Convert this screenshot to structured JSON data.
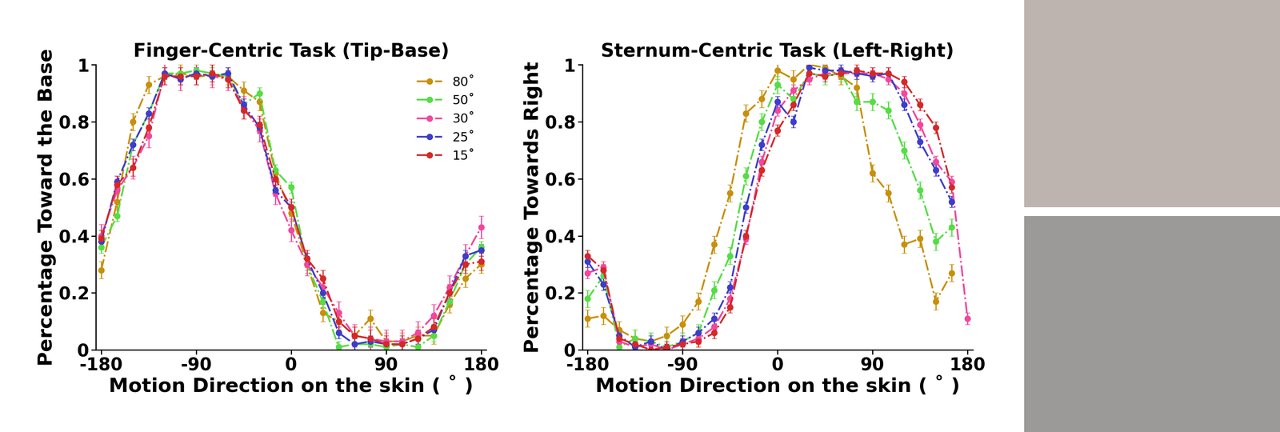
{
  "chart_data": [
    {
      "type": "line",
      "title": "Finger-Centric Task (Tip-Base)",
      "x_label": "Motion Direction on the skin ( ˚ )",
      "y_label": "Percentage Toward the Base",
      "x": [
        -180,
        -165,
        -150,
        -135,
        -120,
        -105,
        -90,
        -75,
        -60,
        -45,
        -30,
        -15,
        0,
        15,
        30,
        45,
        60,
        75,
        90,
        105,
        120,
        135,
        150,
        165,
        180
      ],
      "xlim": [
        -185,
        185
      ],
      "xticks": [
        -180,
        -90,
        0,
        90,
        180
      ],
      "ylim": [
        0,
        1
      ],
      "yticks": [
        0,
        0.2,
        0.4,
        0.6,
        0.8,
        1
      ],
      "marker": "o",
      "line_style": "dashdot",
      "legend": "upper right",
      "series": [
        {
          "name": "80˚",
          "color": "#c8900a",
          "error": 0.03,
          "values": [
            0.28,
            0.52,
            0.8,
            0.93,
            0.96,
            0.97,
            0.96,
            0.96,
            0.96,
            0.91,
            0.87,
            0.62,
            0.48,
            0.3,
            0.13,
            0.1,
            0.05,
            0.11,
            0.03,
            0.03,
            0.05,
            0.05,
            0.16,
            0.25,
            0.3
          ]
        },
        {
          "name": "50˚",
          "color": "#55dd44",
          "error": 0.02,
          "values": [
            0.36,
            0.47,
            0.72,
            0.83,
            0.97,
            0.97,
            0.98,
            0.97,
            0.96,
            0.86,
            0.9,
            0.63,
            0.57,
            0.3,
            0.17,
            0.01,
            0.02,
            0.02,
            0.01,
            0.02,
            0.01,
            0.05,
            0.17,
            0.3,
            0.36
          ]
        },
        {
          "name": "30˚",
          "color": "#f2479c",
          "error": 0.04,
          "values": [
            0.4,
            0.56,
            0.64,
            0.75,
            0.97,
            0.95,
            0.97,
            0.96,
            0.95,
            0.85,
            0.77,
            0.55,
            0.42,
            0.3,
            0.22,
            0.13,
            0.05,
            0.04,
            0.03,
            0.03,
            0.06,
            0.12,
            0.22,
            0.33,
            0.43
          ]
        },
        {
          "name": "25˚",
          "color": "#3d3dcc",
          "error": 0.02,
          "values": [
            0.38,
            0.59,
            0.72,
            0.83,
            0.97,
            0.95,
            0.97,
            0.96,
            0.97,
            0.86,
            0.78,
            0.56,
            0.5,
            0.32,
            0.2,
            0.06,
            0.02,
            0.03,
            0.02,
            0.02,
            0.04,
            0.07,
            0.2,
            0.33,
            0.35
          ]
        },
        {
          "name": "15˚",
          "color": "#d62828",
          "error": 0.03,
          "values": [
            0.39,
            0.58,
            0.64,
            0.78,
            0.96,
            0.96,
            0.96,
            0.97,
            0.95,
            0.84,
            0.79,
            0.6,
            0.5,
            0.32,
            0.25,
            0.1,
            0.05,
            0.04,
            0.02,
            0.02,
            0.04,
            0.08,
            0.2,
            0.3,
            0.31
          ]
        }
      ]
    },
    {
      "type": "line",
      "title": "Sternum-Centric Task (Left-Right)",
      "x_label": "Motion Direction on the skin ( ˚ )",
      "y_label": "Percentage Towards Right",
      "x": [
        -180,
        -165,
        -150,
        -135,
        -120,
        -105,
        -90,
        -75,
        -60,
        -45,
        -30,
        -15,
        0,
        15,
        30,
        45,
        60,
        75,
        90,
        105,
        120,
        135,
        150,
        165,
        180
      ],
      "xlim": [
        -185,
        185
      ],
      "xticks": [
        -180,
        -90,
        0,
        90,
        180
      ],
      "ylim": [
        0,
        1
      ],
      "yticks": [
        0,
        0.2,
        0.4,
        0.6,
        0.8,
        1
      ],
      "marker": "o",
      "line_style": "dashdot",
      "series": [
        {
          "name": "80˚",
          "color": "#c8900a",
          "error": 0.03,
          "values": [
            0.11,
            0.12,
            0.07,
            0.04,
            0.03,
            0.05,
            0.09,
            0.17,
            0.37,
            0.55,
            0.83,
            0.88,
            0.98,
            0.95,
            1.0,
            0.99,
            0.96,
            0.92,
            0.62,
            0.55,
            0.37,
            0.39,
            0.17,
            0.27,
            null
          ]
        },
        {
          "name": "50˚",
          "color": "#55dd44",
          "error": 0.03,
          "values": [
            0.18,
            0.26,
            0.01,
            0.04,
            0.03,
            0.01,
            0.03,
            0.06,
            0.21,
            0.33,
            0.61,
            0.8,
            0.93,
            0.88,
            0.97,
            0.96,
            0.97,
            0.87,
            0.87,
            0.84,
            0.7,
            0.56,
            0.38,
            0.43,
            null
          ]
        },
        {
          "name": "30˚",
          "color": "#f2479c",
          "error": 0.02,
          "values": [
            0.27,
            0.29,
            0.03,
            0.01,
            0.02,
            0.0,
            0.02,
            0.04,
            0.08,
            0.18,
            0.39,
            0.66,
            0.84,
            0.91,
            0.95,
            0.97,
            0.97,
            0.97,
            0.97,
            0.95,
            0.9,
            0.79,
            0.66,
            0.59,
            0.11
          ]
        },
        {
          "name": "25˚",
          "color": "#3d3dcc",
          "error": 0.02,
          "values": [
            0.31,
            0.23,
            0.05,
            0.01,
            0.03,
            0.0,
            0.03,
            0.06,
            0.11,
            0.22,
            0.5,
            0.72,
            0.87,
            0.8,
            0.99,
            0.98,
            0.98,
            0.97,
            0.96,
            0.97,
            0.86,
            0.73,
            0.63,
            0.52,
            null
          ]
        },
        {
          "name": "15˚",
          "color": "#d62828",
          "error": 0.02,
          "values": [
            0.33,
            0.28,
            0.04,
            0.02,
            0.0,
            0.01,
            0.02,
            0.03,
            0.06,
            0.15,
            0.4,
            0.63,
            0.77,
            0.86,
            0.97,
            0.96,
            0.97,
            0.98,
            0.97,
            0.97,
            0.94,
            0.86,
            0.78,
            0.57,
            null
          ]
        }
      ]
    }
  ]
}
